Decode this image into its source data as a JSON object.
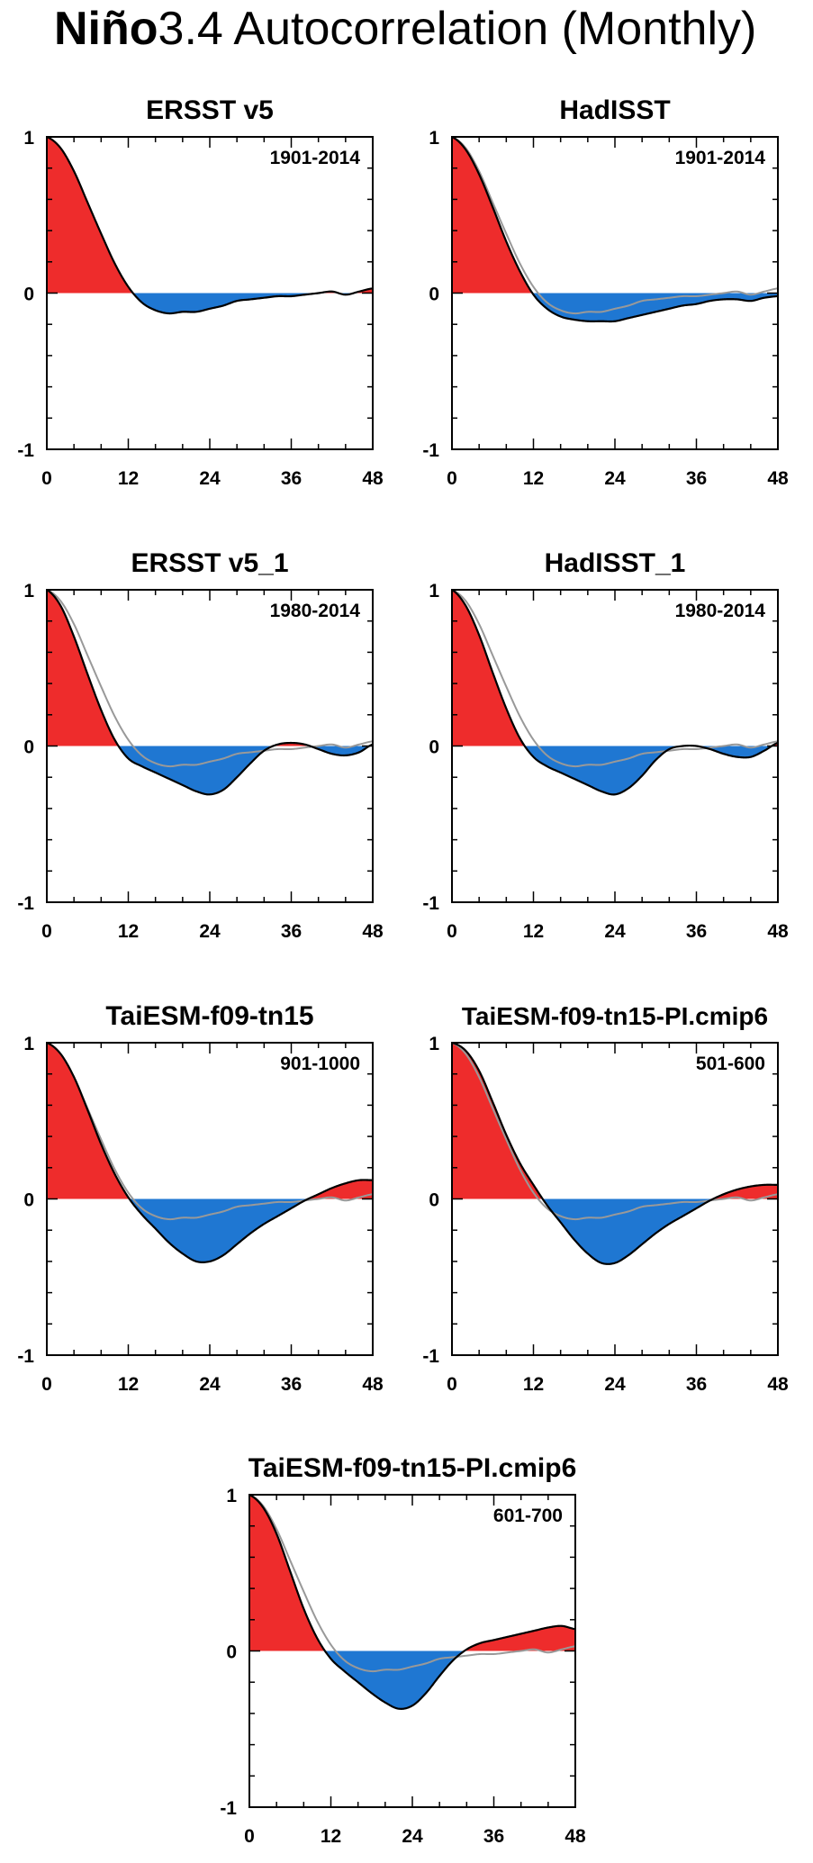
{
  "title": {
    "bold_part": "Niño",
    "normal_part": "3.4 Autocorrelation (Monthly)"
  },
  "colors": {
    "positive_fill": "#ee2c2c",
    "negative_fill": "#1f77d2",
    "line": "#000000",
    "reference_line": "#999999"
  },
  "chart_data": [
    {
      "type": "area",
      "title": "ERSST v5",
      "period": "1901-2014",
      "xlim": [
        0,
        48
      ],
      "ylim": [
        -1,
        1
      ],
      "x_ticks": [
        "0",
        "12",
        "24",
        "36",
        "48"
      ],
      "y_ticks": [
        "1",
        "0",
        "-1"
      ],
      "x": [
        0,
        2,
        4,
        6,
        8,
        10,
        12,
        14,
        16,
        18,
        20,
        22,
        24,
        26,
        28,
        30,
        32,
        34,
        36,
        38,
        40,
        42,
        44,
        46,
        48
      ],
      "series": [
        {
          "values": [
            1.0,
            0.93,
            0.78,
            0.58,
            0.38,
            0.19,
            0.04,
            -0.06,
            -0.11,
            -0.13,
            -0.12,
            -0.12,
            -0.1,
            -0.08,
            -0.05,
            -0.04,
            -0.03,
            -0.02,
            -0.02,
            -0.01,
            0.0,
            0.01,
            -0.01,
            0.01,
            0.03
          ]
        }
      ]
    },
    {
      "type": "area",
      "title": "HadISST",
      "period": "1901-2014",
      "xlim": [
        0,
        48
      ],
      "ylim": [
        -1,
        1
      ],
      "x_ticks": [
        "0",
        "12",
        "24",
        "36",
        "48"
      ],
      "y_ticks": [
        "1",
        "0",
        "-1"
      ],
      "x": [
        0,
        2,
        4,
        6,
        8,
        10,
        12,
        14,
        16,
        18,
        20,
        22,
        24,
        26,
        28,
        30,
        32,
        34,
        36,
        38,
        40,
        42,
        44,
        46,
        48
      ],
      "series": [
        {
          "values": [
            1.0,
            0.92,
            0.76,
            0.55,
            0.33,
            0.14,
            -0.01,
            -0.1,
            -0.15,
            -0.17,
            -0.18,
            -0.18,
            -0.18,
            -0.16,
            -0.14,
            -0.12,
            -0.1,
            -0.08,
            -0.07,
            -0.05,
            -0.04,
            -0.04,
            -0.05,
            -0.03,
            -0.02
          ]
        },
        {
          "values": [
            1.0,
            0.93,
            0.78,
            0.58,
            0.38,
            0.19,
            0.04,
            -0.06,
            -0.11,
            -0.13,
            -0.12,
            -0.12,
            -0.1,
            -0.08,
            -0.05,
            -0.04,
            -0.03,
            -0.02,
            -0.02,
            -0.01,
            0.0,
            0.01,
            -0.01,
            0.01,
            0.03
          ]
        }
      ]
    },
    {
      "type": "area",
      "title": "ERSST v5_1",
      "period": "1980-2014",
      "xlim": [
        0,
        48
      ],
      "ylim": [
        -1,
        1
      ],
      "x_ticks": [
        "0",
        "12",
        "24",
        "36",
        "48"
      ],
      "y_ticks": [
        "1",
        "0",
        "-1"
      ],
      "x": [
        0,
        2,
        4,
        6,
        8,
        10,
        12,
        14,
        16,
        18,
        20,
        22,
        24,
        26,
        28,
        30,
        32,
        34,
        36,
        38,
        40,
        42,
        44,
        46,
        48
      ],
      "series": [
        {
          "values": [
            1.0,
            0.9,
            0.7,
            0.46,
            0.23,
            0.04,
            -0.08,
            -0.13,
            -0.17,
            -0.21,
            -0.25,
            -0.29,
            -0.31,
            -0.28,
            -0.2,
            -0.11,
            -0.03,
            0.01,
            0.02,
            0.01,
            -0.02,
            -0.05,
            -0.06,
            -0.04,
            0.01
          ]
        },
        {
          "values": [
            1.0,
            0.93,
            0.78,
            0.58,
            0.38,
            0.19,
            0.04,
            -0.06,
            -0.11,
            -0.13,
            -0.12,
            -0.12,
            -0.1,
            -0.08,
            -0.05,
            -0.04,
            -0.03,
            -0.02,
            -0.02,
            -0.01,
            0.0,
            0.01,
            -0.01,
            0.01,
            0.03
          ]
        }
      ]
    },
    {
      "type": "area",
      "title": "HadISST_1",
      "period": "1980-2014",
      "xlim": [
        0,
        48
      ],
      "ylim": [
        -1,
        1
      ],
      "x_ticks": [
        "0",
        "12",
        "24",
        "36",
        "48"
      ],
      "y_ticks": [
        "1",
        "0",
        "-1"
      ],
      "x": [
        0,
        2,
        4,
        6,
        8,
        10,
        12,
        14,
        16,
        18,
        20,
        22,
        24,
        26,
        28,
        30,
        32,
        34,
        36,
        38,
        40,
        42,
        44,
        46,
        48
      ],
      "series": [
        {
          "values": [
            1.0,
            0.9,
            0.71,
            0.47,
            0.24,
            0.05,
            -0.07,
            -0.13,
            -0.17,
            -0.21,
            -0.25,
            -0.29,
            -0.31,
            -0.27,
            -0.19,
            -0.09,
            -0.02,
            0.0,
            0.0,
            -0.02,
            -0.05,
            -0.07,
            -0.07,
            -0.03,
            0.02
          ]
        },
        {
          "values": [
            1.0,
            0.93,
            0.78,
            0.58,
            0.38,
            0.19,
            0.04,
            -0.06,
            -0.11,
            -0.13,
            -0.12,
            -0.12,
            -0.1,
            -0.08,
            -0.05,
            -0.04,
            -0.03,
            -0.02,
            -0.02,
            -0.01,
            0.0,
            0.01,
            -0.01,
            0.01,
            0.03
          ]
        }
      ]
    },
    {
      "type": "area",
      "title": "TaiESM-f09-tn15",
      "period": "901-1000",
      "xlim": [
        0,
        48
      ],
      "ylim": [
        -1,
        1
      ],
      "x_ticks": [
        "0",
        "12",
        "24",
        "36",
        "48"
      ],
      "y_ticks": [
        "1",
        "0",
        "-1"
      ],
      "x": [
        0,
        2,
        4,
        6,
        8,
        10,
        12,
        14,
        16,
        18,
        20,
        22,
        24,
        26,
        28,
        30,
        32,
        34,
        36,
        38,
        40,
        42,
        44,
        46,
        48
      ],
      "series": [
        {
          "values": [
            1.0,
            0.93,
            0.78,
            0.57,
            0.35,
            0.16,
            0.01,
            -0.1,
            -0.19,
            -0.28,
            -0.35,
            -0.4,
            -0.4,
            -0.36,
            -0.29,
            -0.22,
            -0.16,
            -0.11,
            -0.06,
            -0.01,
            0.03,
            0.07,
            0.1,
            0.12,
            0.12
          ]
        },
        {
          "values": [
            1.0,
            0.93,
            0.78,
            0.58,
            0.38,
            0.19,
            0.04,
            -0.06,
            -0.11,
            -0.13,
            -0.12,
            -0.12,
            -0.1,
            -0.08,
            -0.05,
            -0.04,
            -0.03,
            -0.02,
            -0.02,
            -0.01,
            0.0,
            0.01,
            -0.01,
            0.01,
            0.03
          ]
        }
      ]
    },
    {
      "type": "area",
      "title": "TaiESM-f09-tn15-PI.cmip6",
      "period": "501-600",
      "xlim": [
        0,
        48
      ],
      "ylim": [
        -1,
        1
      ],
      "x_ticks": [
        "0",
        "12",
        "24",
        "36",
        "48"
      ],
      "y_ticks": [
        "1",
        "0",
        "-1"
      ],
      "x": [
        0,
        2,
        4,
        6,
        8,
        10,
        12,
        14,
        16,
        18,
        20,
        22,
        24,
        26,
        28,
        30,
        32,
        34,
        36,
        38,
        40,
        42,
        44,
        46,
        48
      ],
      "series": [
        {
          "values": [
            1.0,
            0.95,
            0.82,
            0.62,
            0.41,
            0.23,
            0.09,
            -0.04,
            -0.15,
            -0.26,
            -0.35,
            -0.41,
            -0.41,
            -0.36,
            -0.29,
            -0.22,
            -0.16,
            -0.11,
            -0.06,
            -0.01,
            0.03,
            0.06,
            0.08,
            0.09,
            0.09
          ]
        },
        {
          "values": [
            1.0,
            0.93,
            0.78,
            0.58,
            0.38,
            0.19,
            0.04,
            -0.06,
            -0.11,
            -0.13,
            -0.12,
            -0.12,
            -0.1,
            -0.08,
            -0.05,
            -0.04,
            -0.03,
            -0.02,
            -0.02,
            -0.01,
            0.0,
            0.01,
            -0.01,
            0.01,
            0.03
          ]
        }
      ]
    },
    {
      "type": "area",
      "title": "TaiESM-f09-tn15-PI.cmip6",
      "period": "601-700",
      "xlim": [
        0,
        48
      ],
      "ylim": [
        -1,
        1
      ],
      "x_ticks": [
        "0",
        "12",
        "24",
        "36",
        "48"
      ],
      "y_ticks": [
        "1",
        "0",
        "-1"
      ],
      "x": [
        0,
        2,
        4,
        6,
        8,
        10,
        12,
        14,
        16,
        18,
        20,
        22,
        24,
        26,
        28,
        30,
        32,
        34,
        36,
        38,
        40,
        42,
        44,
        46,
        48
      ],
      "series": [
        {
          "values": [
            1.0,
            0.92,
            0.75,
            0.51,
            0.27,
            0.08,
            -0.05,
            -0.13,
            -0.2,
            -0.27,
            -0.33,
            -0.37,
            -0.35,
            -0.27,
            -0.16,
            -0.06,
            0.01,
            0.05,
            0.07,
            0.09,
            0.11,
            0.13,
            0.15,
            0.16,
            0.14
          ]
        },
        {
          "values": [
            1.0,
            0.93,
            0.78,
            0.58,
            0.38,
            0.19,
            0.04,
            -0.06,
            -0.11,
            -0.13,
            -0.12,
            -0.12,
            -0.1,
            -0.08,
            -0.05,
            -0.04,
            -0.03,
            -0.02,
            -0.02,
            -0.01,
            0.0,
            0.01,
            -0.01,
            0.01,
            0.03
          ]
        }
      ]
    }
  ]
}
